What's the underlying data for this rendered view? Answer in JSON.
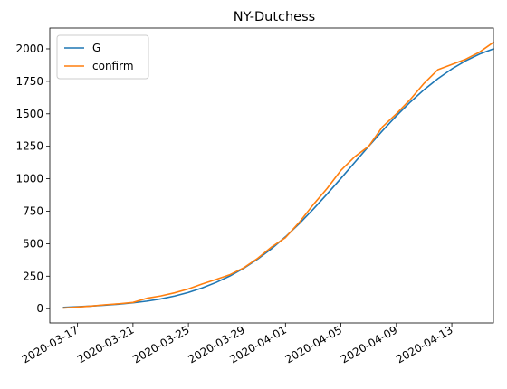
{
  "chart_data": {
    "type": "line",
    "title": "NY-Dutchess",
    "xlabel": "",
    "ylabel": "",
    "xlim": [
      "2020-03-15",
      "2020-04-16"
    ],
    "ylim": [
      -110,
      2160
    ],
    "x_ticks": [
      "2020-03-17",
      "2020-03-21",
      "2020-03-25",
      "2020-03-29",
      "2020-04-01",
      "2020-04-05",
      "2020-04-09",
      "2020-04-13"
    ],
    "y_ticks": [
      0,
      250,
      500,
      750,
      1000,
      1250,
      1500,
      1750,
      2000
    ],
    "legend": {
      "position": "top-left",
      "entries": [
        "G",
        "confirm"
      ]
    },
    "grid": false,
    "series": [
      {
        "name": "G",
        "color": "#1f77b4",
        "points": [
          [
            "2020-03-16",
            10
          ],
          [
            "2020-03-17",
            15
          ],
          [
            "2020-03-18",
            20
          ],
          [
            "2020-03-19",
            27
          ],
          [
            "2020-03-20",
            35
          ],
          [
            "2020-03-21",
            45
          ],
          [
            "2020-03-22",
            58
          ],
          [
            "2020-03-23",
            75
          ],
          [
            "2020-03-24",
            97
          ],
          [
            "2020-03-25",
            125
          ],
          [
            "2020-03-26",
            160
          ],
          [
            "2020-03-27",
            202
          ],
          [
            "2020-03-28",
            252
          ],
          [
            "2020-03-29",
            312
          ],
          [
            "2020-03-30",
            382
          ],
          [
            "2020-03-31",
            462
          ],
          [
            "2020-04-01",
            553
          ],
          [
            "2020-04-02",
            655
          ],
          [
            "2020-04-03",
            765
          ],
          [
            "2020-04-04",
            882
          ],
          [
            "2020-04-05",
            1003
          ],
          [
            "2020-04-06",
            1127
          ],
          [
            "2020-04-07",
            1250
          ],
          [
            "2020-04-08",
            1370
          ],
          [
            "2020-04-09",
            1484
          ],
          [
            "2020-04-10",
            1590
          ],
          [
            "2020-04-11",
            1686
          ],
          [
            "2020-04-12",
            1771
          ],
          [
            "2020-04-13",
            1845
          ],
          [
            "2020-04-14",
            1908
          ],
          [
            "2020-04-15",
            1960
          ],
          [
            "2020-04-16",
            2000
          ]
        ]
      },
      {
        "name": "confirm",
        "color": "#ff7f0e",
        "points": [
          [
            "2020-03-16",
            5
          ],
          [
            "2020-03-17",
            12
          ],
          [
            "2020-03-18",
            20
          ],
          [
            "2020-03-19",
            30
          ],
          [
            "2020-03-20",
            38
          ],
          [
            "2020-03-21",
            48
          ],
          [
            "2020-03-22",
            80
          ],
          [
            "2020-03-23",
            98
          ],
          [
            "2020-03-24",
            122
          ],
          [
            "2020-03-25",
            152
          ],
          [
            "2020-03-26",
            190
          ],
          [
            "2020-03-27",
            225
          ],
          [
            "2020-03-28",
            262
          ],
          [
            "2020-03-29",
            315
          ],
          [
            "2020-03-30",
            388
          ],
          [
            "2020-03-31",
            475
          ],
          [
            "2020-04-01",
            547
          ],
          [
            "2020-04-02",
            665
          ],
          [
            "2020-04-03",
            800
          ],
          [
            "2020-04-04",
            925
          ],
          [
            "2020-04-05",
            1065
          ],
          [
            "2020-04-06",
            1170
          ],
          [
            "2020-04-07",
            1250
          ],
          [
            "2020-04-08",
            1400
          ],
          [
            "2020-04-09",
            1500
          ],
          [
            "2020-04-10",
            1610
          ],
          [
            "2020-04-11",
            1735
          ],
          [
            "2020-04-12",
            1840
          ],
          [
            "2020-04-13",
            1880
          ],
          [
            "2020-04-14",
            1920
          ],
          [
            "2020-04-15",
            1975
          ],
          [
            "2020-04-16",
            2050
          ]
        ]
      }
    ]
  }
}
